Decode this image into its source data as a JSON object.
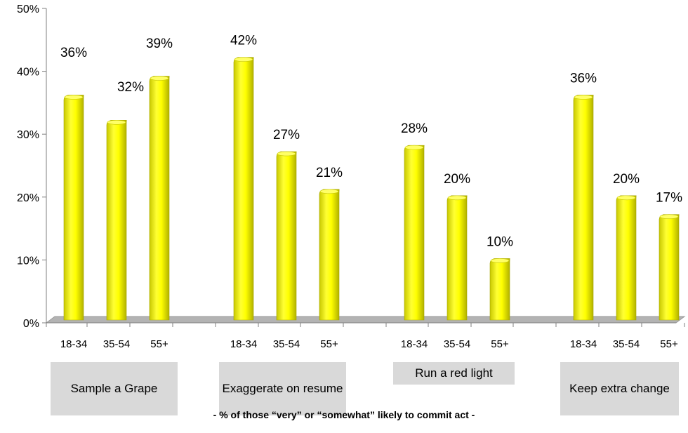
{
  "chart_data": {
    "type": "bar",
    "title": "",
    "xlabel": "- % of those “very” or “somewhat” likely to commit act -",
    "ylabel": "",
    "ylim": [
      0,
      50
    ],
    "yticks": [
      "0%",
      "10%",
      "20%",
      "30%",
      "40%",
      "50%"
    ],
    "age_groups": [
      "18-34",
      "35-54",
      "55+"
    ],
    "groups": [
      {
        "label": "Sample a Grape",
        "values": [
          36,
          32,
          39
        ],
        "value_labels": [
          "36%",
          "32%",
          "39%"
        ]
      },
      {
        "label": "Exaggerate on resume",
        "values": [
          42,
          27,
          21
        ],
        "value_labels": [
          "42%",
          "27%",
          "21%"
        ]
      },
      {
        "label": "Run a red light",
        "values": [
          28,
          20,
          10
        ],
        "value_labels": [
          "28%",
          "20%",
          "10%"
        ]
      },
      {
        "label": "Keep extra change",
        "values": [
          36,
          20,
          17
        ],
        "value_labels": [
          "36%",
          "20%",
          "17%"
        ]
      }
    ],
    "bar_color": "#ffff00",
    "floor_color": "#b3b3b3",
    "grid": false,
    "legend": "none"
  }
}
